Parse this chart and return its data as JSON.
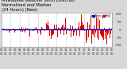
{
  "title_line1": "Milwaukee Weather Wind Direction",
  "title_line2": "Normalized and Median",
  "title_line3": "(24 Hours) (New)",
  "bg_color": "#d8d8d8",
  "plot_bg_color": "#ffffff",
  "bar_color": "#dd0000",
  "median_line_color": "#0000cc",
  "median_value": 5,
  "ylim": [
    -200,
    200
  ],
  "ytick_values": [
    -180,
    -90,
    0,
    90,
    180
  ],
  "ytick_labels": [
    "-180",
    " -90",
    "   0",
    "  90",
    " 180"
  ],
  "num_bars": 288,
  "legend_normalized_color": "#0000bb",
  "legend_median_color": "#cc0000",
  "grid_color": "#aaaaaa",
  "title_color": "#000000",
  "title_fontsize": 3.8,
  "tick_fontsize": 2.8,
  "figsize": [
    1.6,
    0.87
  ],
  "dpi": 100
}
